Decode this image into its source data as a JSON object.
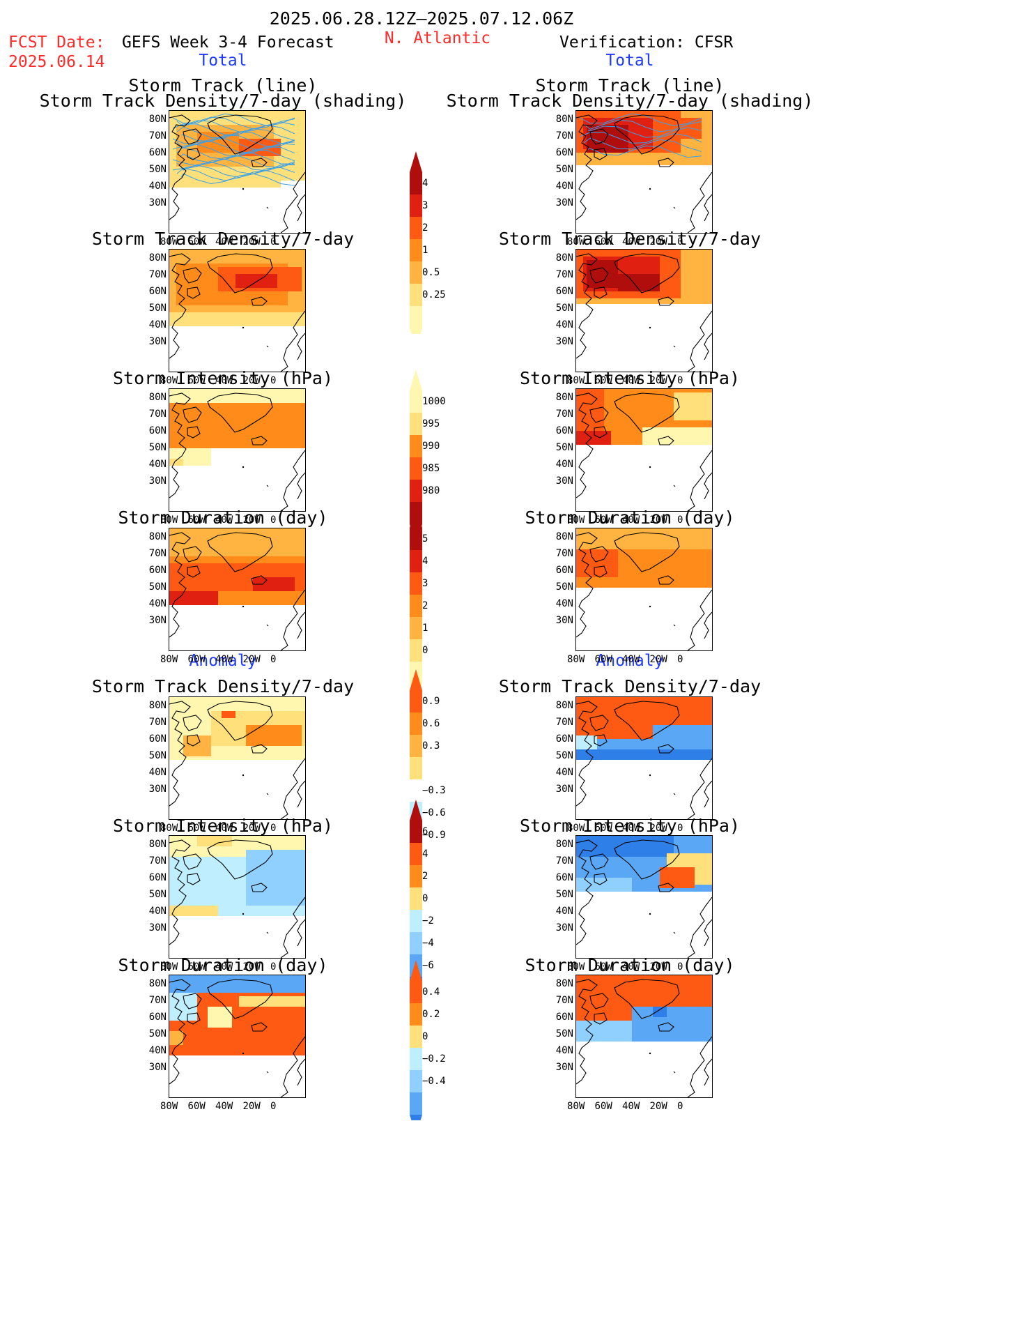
{
  "header": {
    "period": "2025.06.28.12Z–2025.07.12.06Z",
    "fcst_label": "FCST Date:",
    "fcst_date": "2025.06.14",
    "model": "GEFS Week 3-4 Forecast",
    "region": "N. Atlantic",
    "verification": "Verification: CFSR"
  },
  "sections": {
    "total": "Total",
    "anomaly": "Anomaly"
  },
  "axes": {
    "lat": [
      "80N",
      "70N",
      "60N",
      "50N",
      "40N",
      "30N"
    ],
    "lon": [
      "80W",
      "60W",
      "40W",
      "20W",
      "0"
    ]
  },
  "panels": {
    "track_line": [
      "Storm Track (line)",
      "Storm Track Density/7-day (shading)"
    ],
    "density": "Storm Track Density/7-day",
    "intensity": "Storm Intensity (hPa)",
    "duration": "Storm Duration (day)"
  },
  "colorbars": {
    "density_total": [
      "4",
      "3",
      "2",
      "1",
      "0.5",
      "0.25"
    ],
    "intensity_total": [
      "1000",
      "995",
      "990",
      "985",
      "980"
    ],
    "duration_total": [
      "5",
      "4",
      "3",
      "2",
      "1",
      "0"
    ],
    "density_anom": [
      "0.9",
      "0.6",
      "0.3",
      "−0.3",
      "−0.6",
      "−0.9"
    ],
    "intensity_anom": [
      "6",
      "4",
      "2",
      "0",
      "−2",
      "−4",
      "−6"
    ],
    "duration_anom": [
      "0.4",
      "0.2",
      "0",
      "−0.2",
      "−0.4"
    ]
  },
  "colors": {
    "title_red": "#ff2a2a",
    "section_blue": "#1f3bff",
    "warm": [
      "#fff7b0",
      "#ffe07a",
      "#ffb340",
      "#ff8c1a",
      "#ff5a14",
      "#e02010",
      "#b00d0d"
    ],
    "cool": [
      "#bfeeff",
      "#8fd0ff",
      "#5aa8f5",
      "#2f7fe8",
      "#1a5ad6"
    ]
  }
}
